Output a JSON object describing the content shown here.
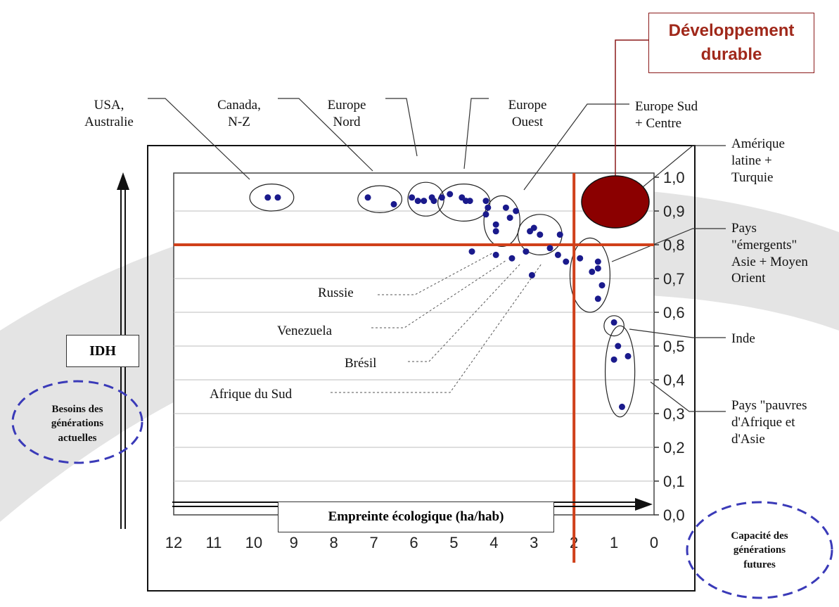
{
  "chart_data": {
    "type": "scatter",
    "xlabel": "Empreinte écologique (ha/hab)",
    "ylabel": "IDH",
    "xlim": [
      12,
      0
    ],
    "ylim": [
      0,
      1
    ],
    "x_ticks": [
      "12",
      "11",
      "10",
      "9",
      "8",
      "7",
      "6",
      "5",
      "4",
      "3",
      "2",
      "1",
      "0"
    ],
    "y_ticks": [
      "0,0",
      "0,1",
      "0,2",
      "0,3",
      "0,4",
      "0,5",
      "0,6",
      "0,7",
      "0,8",
      "0,9",
      "1,0"
    ],
    "x_reversed": true,
    "grid": "horizontal",
    "threshold_x": 2,
    "threshold_y": 0.8,
    "point_color": "#1a1a8c",
    "threshold_color": "#d0401a",
    "goal_color": "#8b0000",
    "points": [
      {
        "x": 9.65,
        "y": 0.94
      },
      {
        "x": 9.4,
        "y": 0.94
      },
      {
        "x": 7.15,
        "y": 0.94
      },
      {
        "x": 6.5,
        "y": 0.92
      },
      {
        "x": 6.05,
        "y": 0.94
      },
      {
        "x": 5.9,
        "y": 0.93
      },
      {
        "x": 5.75,
        "y": 0.93
      },
      {
        "x": 5.55,
        "y": 0.94
      },
      {
        "x": 5.5,
        "y": 0.93
      },
      {
        "x": 5.3,
        "y": 0.94
      },
      {
        "x": 5.1,
        "y": 0.95
      },
      {
        "x": 4.8,
        "y": 0.94
      },
      {
        "x": 4.7,
        "y": 0.93
      },
      {
        "x": 4.6,
        "y": 0.93
      },
      {
        "x": 4.2,
        "y": 0.93
      },
      {
        "x": 4.15,
        "y": 0.91
      },
      {
        "x": 4.2,
        "y": 0.89
      },
      {
        "x": 3.95,
        "y": 0.86
      },
      {
        "x": 3.95,
        "y": 0.84
      },
      {
        "x": 3.7,
        "y": 0.91
      },
      {
        "x": 3.6,
        "y": 0.88
      },
      {
        "x": 3.45,
        "y": 0.9
      },
      {
        "x": 3.1,
        "y": 0.84
      },
      {
        "x": 3.0,
        "y": 0.85
      },
      {
        "x": 2.85,
        "y": 0.83
      },
      {
        "x": 2.35,
        "y": 0.83
      },
      {
        "x": 2.6,
        "y": 0.79
      },
      {
        "x": 2.4,
        "y": 0.77
      },
      {
        "x": 2.2,
        "y": 0.75
      },
      {
        "x": 1.85,
        "y": 0.76
      },
      {
        "x": 1.55,
        "y": 0.72
      },
      {
        "x": 1.4,
        "y": 0.75
      },
      {
        "x": 1.4,
        "y": 0.73
      },
      {
        "x": 1.3,
        "y": 0.68
      },
      {
        "x": 1.4,
        "y": 0.64
      },
      {
        "x": 4.55,
        "y": 0.78
      },
      {
        "x": 3.95,
        "y": 0.77
      },
      {
        "x": 3.55,
        "y": 0.76
      },
      {
        "x": 3.2,
        "y": 0.78
      },
      {
        "x": 3.05,
        "y": 0.71
      },
      {
        "x": 1.0,
        "y": 0.57
      },
      {
        "x": 0.9,
        "y": 0.5
      },
      {
        "x": 0.65,
        "y": 0.47
      },
      {
        "x": 1.0,
        "y": 0.46
      },
      {
        "x": 0.8,
        "y": 0.32
      }
    ],
    "groups": [
      {
        "label": "USA,\nAustralie"
      },
      {
        "label": "Canada,\nN-Z"
      },
      {
        "label": "Europe\nNord"
      },
      {
        "label": "Europe\nOuest"
      },
      {
        "label": "Europe Sud\n+ Centre"
      },
      {
        "label": "Amérique\nlatine +\nTurquie"
      },
      {
        "label": "Pays\n\"émergents\"\nAsie + Moyen\nOrient"
      },
      {
        "label": "Inde"
      },
      {
        "label": "Pays \"pauvres\nd'Afrique et\nd'Asie"
      }
    ],
    "callouts": [
      {
        "label": "Russie"
      },
      {
        "label": "Venezuela"
      },
      {
        "label": "Brésil"
      },
      {
        "label": "Afrique du Sud"
      }
    ]
  },
  "goal_box": {
    "label": "Développement\ndurable"
  },
  "idh_box": {
    "label": "IDH"
  },
  "xaxis_box": {
    "label": "Empreinte écologique (ha/hab)"
  },
  "needs_label": "Besoins des\ngénérations\nactuelles",
  "capacity_label": "Capacité des\ngénérations\nfutures"
}
